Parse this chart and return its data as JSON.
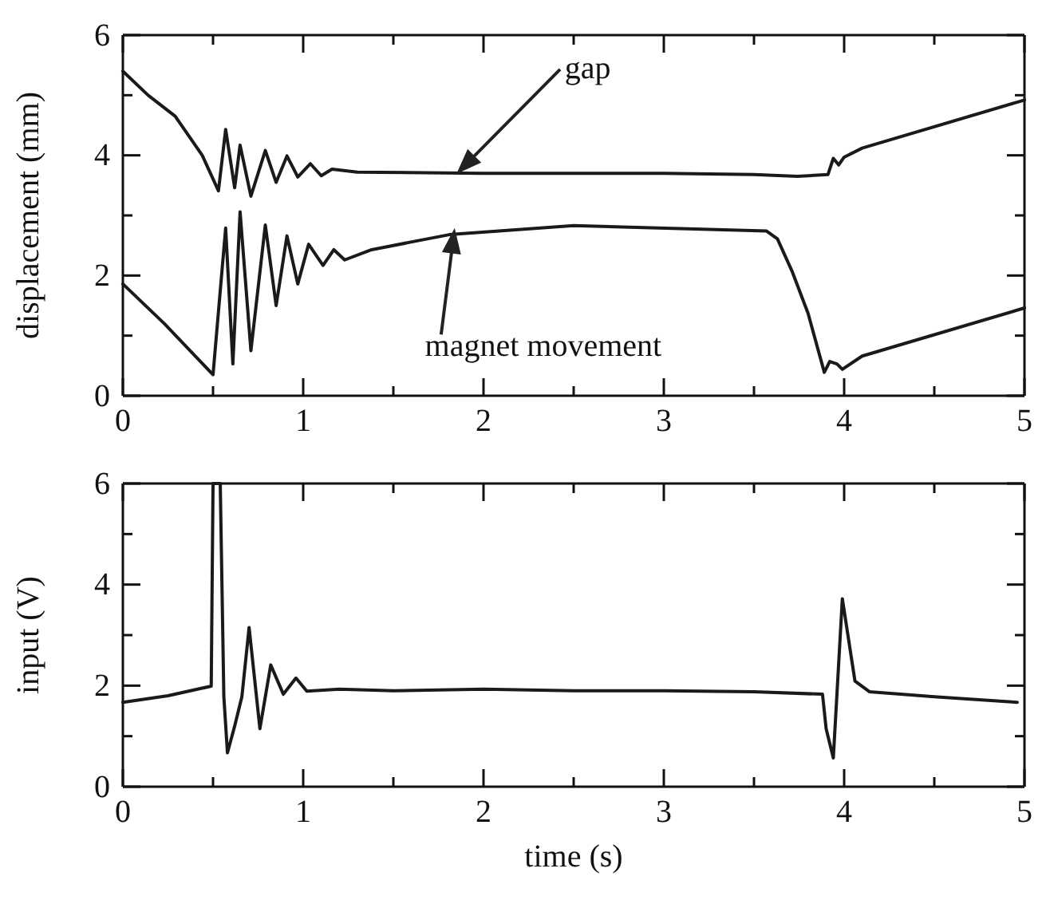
{
  "chart_data": [
    {
      "type": "line",
      "ylabel": "displacement (mm)",
      "xlim": [
        0,
        5
      ],
      "ylim": [
        0,
        6
      ],
      "xticks": [
        0,
        {
          "value": 0.5,
          "label": null
        },
        1,
        {
          "value": 1.5,
          "label": null
        },
        2,
        {
          "value": 2.5,
          "label": null
        },
        3,
        {
          "value": 3.5,
          "label": null
        },
        4,
        {
          "value": 4.5,
          "label": null
        },
        5
      ],
      "yticks": [
        0,
        {
          "value": 1,
          "label": null
        },
        2,
        {
          "value": 3,
          "label": null
        },
        4,
        {
          "value": 5,
          "label": null
        },
        6
      ],
      "grid": false,
      "marker": "none",
      "line_style": "solid",
      "series": [
        {
          "color": "#1a1a1a",
          "x": [
            0,
            0.14,
            0.29,
            0.44,
            0.53,
            0.57,
            0.62,
            0.65,
            0.71,
            0.79,
            0.85,
            0.91,
            0.97,
            1.04,
            1.1,
            1.16,
            1.3,
            2,
            3,
            3.5,
            3.74,
            3.91,
            3.94,
            3.97,
            4.0,
            4.1,
            5
          ],
          "values": [
            5.4,
            5.0,
            4.65,
            4.0,
            3.41,
            4.43,
            3.46,
            4.17,
            3.32,
            4.08,
            3.55,
            3.99,
            3.64,
            3.86,
            3.66,
            3.77,
            3.72,
            3.7,
            3.7,
            3.68,
            3.65,
            3.68,
            3.95,
            3.84,
            3.97,
            4.12,
            4.92
          ]
        },
        {
          "color": "#1a1a1a",
          "x": [
            0,
            0.23,
            0.5,
            0.57,
            0.61,
            0.65,
            0.71,
            0.79,
            0.85,
            0.91,
            0.97,
            1.03,
            1.11,
            1.17,
            1.23,
            1.38,
            1.62,
            1.81,
            2.5,
            3.57,
            3.63,
            3.71,
            3.8,
            3.89,
            3.92,
            3.96,
            3.99,
            4.1,
            5
          ],
          "values": [
            1.86,
            1.2,
            0.35,
            2.79,
            0.53,
            3.06,
            0.75,
            2.84,
            1.5,
            2.66,
            1.86,
            2.52,
            2.17,
            2.43,
            2.26,
            2.43,
            2.57,
            2.68,
            2.83,
            2.74,
            2.61,
            2.08,
            1.37,
            0.39,
            0.57,
            0.53,
            0.44,
            0.66,
            1.46
          ]
        }
      ],
      "annotations": [
        "gap",
        "magnet movement"
      ]
    },
    {
      "type": "line",
      "ylabel": "input (V)",
      "xlabel": "time (s)",
      "xlim": [
        0,
        5
      ],
      "ylim": [
        0,
        6
      ],
      "xticks": [
        0,
        {
          "value": 0.5,
          "label": null
        },
        1,
        {
          "value": 1.5,
          "label": null
        },
        2,
        {
          "value": 2.5,
          "label": null
        },
        3,
        {
          "value": 3.5,
          "label": null
        },
        4,
        {
          "value": 4.5,
          "label": null
        },
        5
      ],
      "yticks": [
        0,
        {
          "value": 1,
          "label": null
        },
        2,
        {
          "value": 3,
          "label": null
        },
        4,
        {
          "value": 5,
          "label": null
        },
        6
      ],
      "grid": false,
      "marker": "none",
      "line_style": "solid",
      "series": [
        {
          "color": "#1a1a1a",
          "x": [
            0,
            0.25,
            0.49,
            0.5,
            0.54,
            0.56,
            0.58,
            0.62,
            0.66,
            0.7,
            0.76,
            0.82,
            0.89,
            0.96,
            1.02,
            1.2,
            1.5,
            2,
            2.5,
            3,
            3.5,
            3.88,
            3.9,
            3.94,
            3.99,
            4.06,
            4.14,
            4.5,
            4.96
          ],
          "values": [
            1.67,
            1.8,
            1.99,
            6,
            6,
            1.78,
            0.67,
            1.2,
            1.78,
            3.15,
            1.15,
            2.41,
            1.83,
            2.15,
            1.89,
            1.93,
            1.9,
            1.93,
            1.9,
            1.9,
            1.88,
            1.83,
            1.15,
            0.57,
            3.72,
            2.09,
            1.88,
            1.78,
            1.67
          ]
        }
      ]
    }
  ]
}
